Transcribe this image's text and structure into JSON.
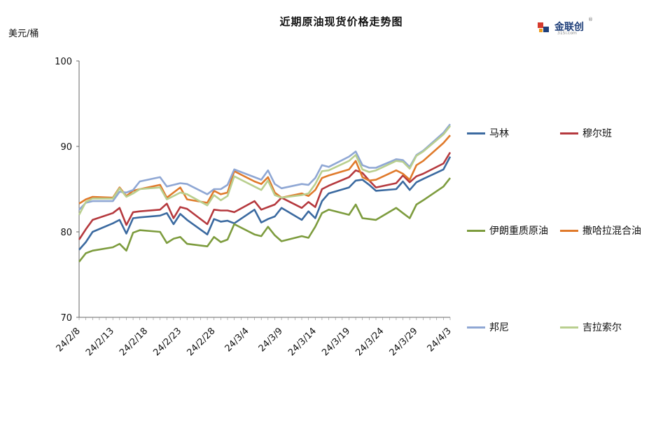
{
  "header": {
    "title": "近期原油现货价格走势图",
    "unit": "美元/桶",
    "logo_text": "金联创",
    "logo_url": "315i.com"
  },
  "chart_data": {
    "type": "line",
    "title": "近期原油现货价格走势图",
    "ylabel": "美元/桶",
    "ylim": [
      70,
      100
    ],
    "y_ticks": [
      70,
      80,
      90,
      100
    ],
    "x_ticks": [
      "24/2/8",
      "24/2/13",
      "24/2/18",
      "24/2/23",
      "24/2/28",
      "24/3/4",
      "24/3/9",
      "24/3/14",
      "24/3/19",
      "24/3/24",
      "24/3/29",
      "24/4/3"
    ],
    "xlim": [
      "2024-02-08",
      "2024-04-03"
    ],
    "grid": false,
    "legend_position": "right",
    "x": [
      "2024-02-08",
      "2024-02-09",
      "2024-02-10",
      "2024-02-13",
      "2024-02-14",
      "2024-02-15",
      "2024-02-16",
      "2024-02-17",
      "2024-02-20",
      "2024-02-21",
      "2024-02-22",
      "2024-02-23",
      "2024-02-24",
      "2024-02-27",
      "2024-02-28",
      "2024-02-29",
      "2024-03-01",
      "2024-03-02",
      "2024-03-05",
      "2024-03-06",
      "2024-03-07",
      "2024-03-08",
      "2024-03-09",
      "2024-03-12",
      "2024-03-13",
      "2024-03-14",
      "2024-03-15",
      "2024-03-16",
      "2024-03-19",
      "2024-03-20",
      "2024-03-21",
      "2024-03-22",
      "2024-03-23",
      "2024-03-26",
      "2024-03-27",
      "2024-03-28",
      "2024-03-29",
      "2024-03-30",
      "2024-04-02",
      "2024-04-03"
    ],
    "series": [
      {
        "name": "马林",
        "color": "#3b6aa0",
        "values": [
          77.9,
          78.8,
          80.0,
          81.0,
          81.4,
          79.8,
          81.6,
          81.7,
          81.9,
          82.2,
          80.9,
          82.1,
          81.4,
          79.7,
          81.5,
          81.2,
          81.3,
          81.0,
          82.6,
          81.1,
          81.5,
          81.8,
          82.8,
          81.4,
          82.4,
          81.6,
          83.6,
          84.5,
          85.2,
          86.0,
          86.1,
          85.5,
          84.8,
          85.0,
          85.9,
          84.9,
          85.8,
          86.2,
          87.3,
          88.8
        ]
      },
      {
        "name": "穆尔班",
        "color": "#b5393e",
        "values": [
          79.1,
          80.3,
          81.4,
          82.2,
          82.8,
          80.8,
          82.3,
          82.4,
          82.6,
          83.3,
          81.6,
          82.9,
          82.7,
          80.9,
          82.6,
          82.5,
          82.5,
          82.3,
          83.6,
          82.6,
          82.9,
          83.2,
          84.0,
          82.8,
          83.5,
          82.9,
          85.0,
          85.4,
          86.4,
          87.2,
          86.9,
          86.0,
          85.2,
          85.7,
          86.6,
          85.8,
          86.5,
          86.8,
          88.0,
          89.3
        ]
      },
      {
        "name": "伊朗重质原油",
        "color": "#7d9c3e",
        "values": [
          76.5,
          77.5,
          77.8,
          78.2,
          78.6,
          77.8,
          79.9,
          80.2,
          80.0,
          78.7,
          79.2,
          79.4,
          78.6,
          78.3,
          79.4,
          78.8,
          79.1,
          80.9,
          79.7,
          79.5,
          80.6,
          79.6,
          78.9,
          79.5,
          79.3,
          80.6,
          82.2,
          82.6,
          82.0,
          83.2,
          81.6,
          81.5,
          81.4,
          82.8,
          82.2,
          81.6,
          83.2,
          83.7,
          85.3,
          86.3
        ]
      },
      {
        "name": "撒哈拉混合油",
        "color": "#e07a2b",
        "values": [
          83.3,
          83.8,
          84.1,
          84.0,
          85.2,
          84.2,
          84.8,
          85.0,
          85.5,
          84.0,
          84.6,
          85.2,
          83.8,
          83.4,
          84.8,
          84.4,
          84.6,
          87.1,
          85.9,
          85.6,
          86.4,
          84.6,
          84.0,
          84.5,
          84.2,
          84.9,
          86.3,
          86.6,
          87.3,
          88.3,
          86.4,
          86.0,
          86.1,
          87.2,
          86.8,
          86.1,
          87.8,
          88.3,
          90.4,
          91.3
        ]
      },
      {
        "name": "邦尼",
        "color": "#8fa7d4",
        "values": [
          82.6,
          83.4,
          83.6,
          83.6,
          84.7,
          84.6,
          84.9,
          85.9,
          86.4,
          85.3,
          85.5,
          85.7,
          85.6,
          84.4,
          85.0,
          85.0,
          85.5,
          87.3,
          86.4,
          86.1,
          87.2,
          85.6,
          85.1,
          85.6,
          85.5,
          86.3,
          87.8,
          87.6,
          88.8,
          89.4,
          87.8,
          87.5,
          87.5,
          88.5,
          88.4,
          87.6,
          89.0,
          89.5,
          91.6,
          92.6
        ]
      },
      {
        "name": "吉拉索尔",
        "color": "#b9cf8f",
        "values": [
          82.0,
          83.5,
          83.9,
          83.9,
          85.1,
          84.1,
          84.5,
          85.0,
          85.2,
          83.8,
          84.2,
          84.6,
          84.4,
          83.1,
          84.3,
          83.7,
          84.2,
          86.5,
          85.3,
          84.9,
          86.0,
          84.3,
          84.0,
          84.3,
          84.5,
          85.6,
          87.1,
          87.2,
          88.3,
          89.0,
          87.3,
          87.0,
          87.2,
          88.3,
          88.2,
          87.4,
          88.9,
          89.4,
          91.4,
          92.4
        ]
      }
    ]
  }
}
